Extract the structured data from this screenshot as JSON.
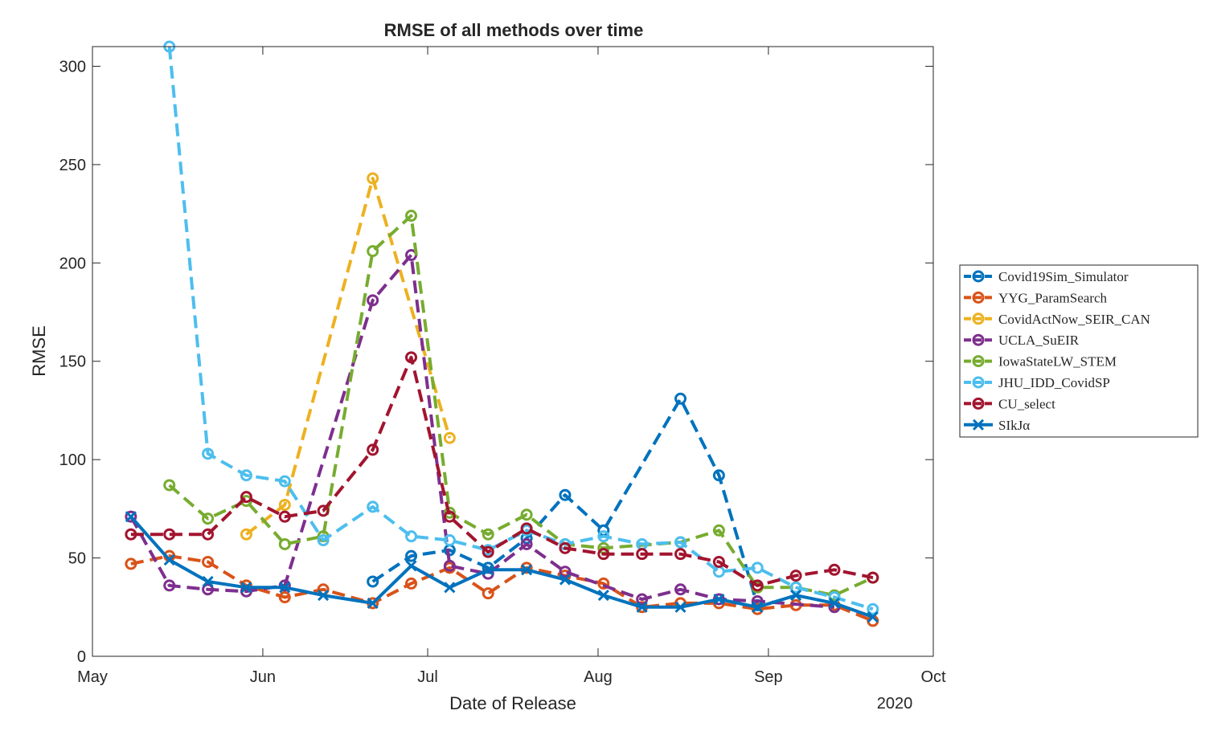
{
  "chart_data": {
    "type": "line",
    "title": "RMSE of all methods over time",
    "xlabel": "Date of Release",
    "ylabel": "RMSE",
    "x_year_label": "2020",
    "xlim": [
      "2020-05-01",
      "2020-10-01"
    ],
    "ylim": [
      0,
      310
    ],
    "x_ticks": [
      {
        "date": "2020-05-01",
        "label": "May"
      },
      {
        "date": "2020-06-01",
        "label": "Jun"
      },
      {
        "date": "2020-07-01",
        "label": "Jul"
      },
      {
        "date": "2020-08-01",
        "label": "Aug"
      },
      {
        "date": "2020-09-01",
        "label": "Sep"
      },
      {
        "date": "2020-10-01",
        "label": "Oct"
      }
    ],
    "y_ticks": [
      0,
      50,
      100,
      150,
      200,
      250,
      300
    ],
    "grid": false,
    "legend_position": "outside-right",
    "series": [
      {
        "name": "Covid19Sim_Simulator",
        "color": "#0072BD",
        "style": "dashed",
        "marker": "circle",
        "x": [
          "2020-06-21",
          "2020-06-28",
          "2020-07-05",
          "2020-07-12",
          "2020-07-19",
          "2020-07-26",
          "2020-08-02",
          "2020-08-16",
          "2020-08-23",
          "2020-08-30"
        ],
        "y": [
          38,
          51,
          54,
          45,
          60,
          82,
          64,
          131,
          92,
          26
        ]
      },
      {
        "name": "YYG_ParamSearch",
        "color": "#D95319",
        "style": "dashed",
        "marker": "circle",
        "x": [
          "2020-05-08",
          "2020-05-15",
          "2020-05-22",
          "2020-05-29",
          "2020-06-05",
          "2020-06-12",
          "2020-06-21",
          "2020-06-28",
          "2020-07-05",
          "2020-07-12",
          "2020-07-19",
          "2020-07-26",
          "2020-08-02",
          "2020-08-09",
          "2020-08-16",
          "2020-08-23",
          "2020-08-30",
          "2020-09-06",
          "2020-09-13",
          "2020-09-20"
        ],
        "y": [
          47,
          51,
          48,
          36,
          30,
          34,
          27,
          37,
          45,
          32,
          45,
          41,
          37,
          25,
          27,
          27,
          24,
          26,
          26,
          18
        ]
      },
      {
        "name": "CovidActNow_SEIR_CAN",
        "color": "#EDB120",
        "style": "dashed",
        "marker": "circle",
        "x": [
          "2020-05-29",
          "2020-06-05",
          "2020-06-21",
          "2020-07-05"
        ],
        "y": [
          62,
          77,
          243,
          111
        ]
      },
      {
        "name": "UCLA_SuEIR",
        "color": "#7E2F8E",
        "style": "dashed",
        "marker": "circle",
        "x": [
          "2020-05-08",
          "2020-05-15",
          "2020-05-22",
          "2020-05-29",
          "2020-06-05",
          "2020-06-21",
          "2020-06-28",
          "2020-07-05",
          "2020-07-12",
          "2020-07-19",
          "2020-07-26",
          "2020-08-09",
          "2020-08-16",
          "2020-08-23",
          "2020-08-30",
          "2020-09-13"
        ],
        "y": [
          71,
          36,
          34,
          33,
          36,
          181,
          204,
          46,
          42,
          57,
          43,
          29,
          34,
          29,
          28,
          25
        ]
      },
      {
        "name": "IowaStateLW_STEM",
        "color": "#77AC30",
        "style": "dashed",
        "marker": "circle",
        "x": [
          "2020-05-15",
          "2020-05-22",
          "2020-05-29",
          "2020-06-05",
          "2020-06-12",
          "2020-06-21",
          "2020-06-28",
          "2020-07-05",
          "2020-07-12",
          "2020-07-19",
          "2020-07-26",
          "2020-08-02",
          "2020-08-16",
          "2020-08-23",
          "2020-08-30",
          "2020-09-06",
          "2020-09-13",
          "2020-09-20"
        ],
        "y": [
          87,
          70,
          79,
          57,
          61,
          206,
          224,
          73,
          62,
          72,
          57,
          55,
          58,
          64,
          35,
          35,
          31,
          40
        ]
      },
      {
        "name": "JHU_IDD_CovidSP",
        "color": "#4DBEEE",
        "style": "dashed",
        "marker": "circle",
        "x": [
          "2020-05-15",
          "2020-05-22",
          "2020-05-29",
          "2020-06-05",
          "2020-06-12",
          "2020-06-21",
          "2020-06-28",
          "2020-07-05",
          "2020-07-12",
          "2020-07-19",
          "2020-07-26",
          "2020-08-02",
          "2020-08-09",
          "2020-08-16",
          "2020-08-23",
          "2020-08-30",
          "2020-09-06",
          "2020-09-13",
          "2020-09-20"
        ],
        "y": [
          310,
          103,
          92,
          89,
          59,
          76,
          61,
          59,
          54,
          64,
          57,
          61,
          57,
          58,
          43,
          45,
          35,
          30,
          24
        ]
      },
      {
        "name": "CU_select",
        "color": "#A2142F",
        "style": "dashed",
        "marker": "circle",
        "x": [
          "2020-05-08",
          "2020-05-15",
          "2020-05-22",
          "2020-05-29",
          "2020-06-05",
          "2020-06-12",
          "2020-06-21",
          "2020-06-28",
          "2020-07-05",
          "2020-07-12",
          "2020-07-19",
          "2020-07-26",
          "2020-08-02",
          "2020-08-09",
          "2020-08-16",
          "2020-08-23",
          "2020-08-30",
          "2020-09-06",
          "2020-09-13",
          "2020-09-20"
        ],
        "y": [
          62,
          62,
          62,
          81,
          71,
          74,
          105,
          152,
          71,
          53,
          65,
          55,
          52,
          52,
          52,
          48,
          36,
          41,
          44,
          40
        ]
      },
      {
        "name": "SIkJα",
        "color": "#0072BD",
        "style": "solid",
        "marker": "x",
        "x": [
          "2020-05-08",
          "2020-05-15",
          "2020-05-22",
          "2020-05-29",
          "2020-06-05",
          "2020-06-12",
          "2020-06-21",
          "2020-06-28",
          "2020-07-05",
          "2020-07-12",
          "2020-07-19",
          "2020-07-26",
          "2020-08-02",
          "2020-08-09",
          "2020-08-16",
          "2020-08-23",
          "2020-08-30",
          "2020-09-06",
          "2020-09-13",
          "2020-09-20"
        ],
        "y": [
          71,
          49,
          38,
          35,
          35,
          31,
          27,
          46,
          35,
          44,
          44,
          39,
          31,
          25,
          25,
          29,
          25,
          31,
          27,
          20
        ]
      }
    ]
  }
}
